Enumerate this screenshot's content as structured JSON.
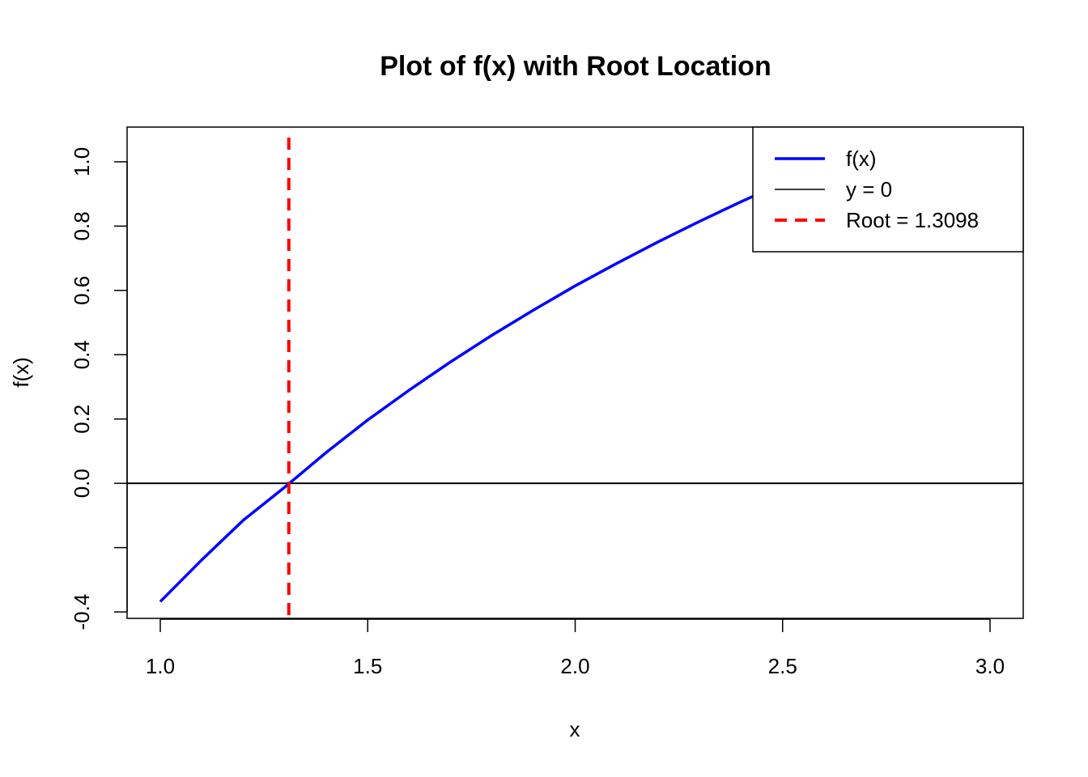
{
  "chart_data": {
    "type": "line",
    "title": "Plot of f(x) with Root Location",
    "xlabel": "x",
    "ylabel": "f(x)",
    "xlim": [
      0.92,
      3.08
    ],
    "ylim": [
      -0.42,
      1.108
    ],
    "x_ticks": [
      1.0,
      1.5,
      2.0,
      2.5,
      3.0
    ],
    "x_tick_labels": [
      "1.0",
      "1.5",
      "2.0",
      "2.5",
      "3.0"
    ],
    "y_ticks": [
      -0.4,
      -0.2,
      0.0,
      0.2,
      0.4,
      0.6,
      0.8,
      1.0
    ],
    "y_tick_labels": [
      "-0.4",
      "",
      "0.0",
      "0.2",
      "0.4",
      "0.6",
      "0.8",
      "1.0"
    ],
    "grid": false,
    "legend_position": "top-right",
    "series": [
      {
        "name": "f(x)",
        "color": "#0000ff",
        "style": "solid",
        "x": [
          1.0,
          1.1,
          1.2,
          1.3,
          1.4,
          1.5,
          1.6,
          1.7,
          1.8,
          1.9,
          2.0,
          2.1,
          2.2,
          2.3,
          2.4,
          2.5,
          2.6,
          2.7,
          2.8,
          2.9,
          3.0
        ],
        "y": [
          -0.368,
          -0.238,
          -0.115,
          -0.012,
          0.096,
          0.197,
          0.29,
          0.378,
          0.461,
          0.539,
          0.614,
          0.684,
          0.751,
          0.815,
          0.876,
          0.934,
          0.99,
          1.044,
          1.095,
          1.145,
          1.193
        ]
      },
      {
        "name": "y = 0",
        "color": "#000000",
        "style": "solid",
        "y": 0
      },
      {
        "name": "Root = 1.3098",
        "color": "#ff0000",
        "style": "dashed",
        "x": 1.3098
      }
    ]
  }
}
